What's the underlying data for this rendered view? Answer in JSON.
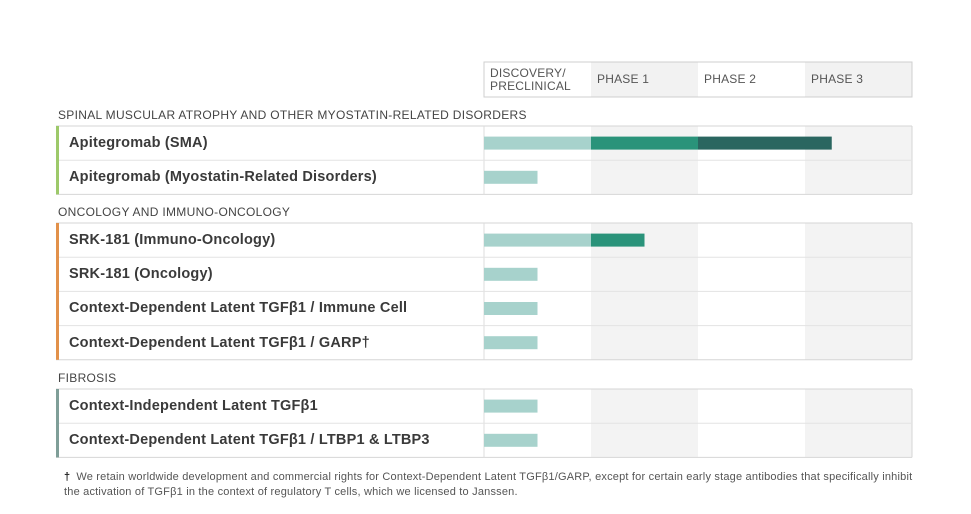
{
  "chart_data": {
    "type": "bar",
    "stages": [
      "DISCOVERY/ PRECLINICAL",
      "PHASE 1",
      "PHASE 2",
      "PHASE 3"
    ],
    "stage_header_lines": [
      [
        "DISCOVERY/",
        "PRECLINICAL"
      ],
      [
        "PHASE 1"
      ],
      [
        "PHASE 2"
      ],
      [
        "PHASE 3"
      ]
    ],
    "xlim": [
      0,
      4
    ],
    "value_unit": "development stage (1 = end of Discovery/Preclinical, 2 = end of Phase 1, 3 = end of Phase 2, 4 = end of Phase 3)",
    "groups": [
      {
        "name": "SPINAL MUSCULAR ATROPHY AND OTHER MYOSTATIN-RELATED DISORDERS",
        "accent_color": "#9dc96a",
        "programs": [
          {
            "name": "Apitegromab (SMA)",
            "progress": 3.25
          },
          {
            "name": "Apitegromab (Myostatin-Related Disorders)",
            "progress": 0.5
          }
        ]
      },
      {
        "name": "ONCOLOGY AND IMMUNO-ONCOLOGY",
        "accent_color": "#e2914a",
        "programs": [
          {
            "name": "SRK-181 (Immuno-Oncology)",
            "progress": 1.5
          },
          {
            "name": "SRK-181 (Oncology)",
            "progress": 0.5
          },
          {
            "name": "Context-Dependent Latent TGFβ1 / Immune Cell",
            "progress": 0.5
          },
          {
            "name": "Context-Dependent Latent TGFβ1 / GARP†",
            "progress": 0.5
          }
        ]
      },
      {
        "name": "FIBROSIS",
        "accent_color": "#7f9e98",
        "programs": [
          {
            "name": "Context-Independent Latent TGFβ1",
            "progress": 0.5
          },
          {
            "name": "Context-Dependent Latent TGFβ1 / LTBP1 & LTBP3",
            "progress": 0.5
          }
        ]
      }
    ],
    "stage_colors": [
      "#a7d2cc",
      "#2a937a",
      "#2a6660",
      "#2a6660"
    ]
  },
  "footnote": {
    "symbol": "†",
    "text": "We retain worldwide development and commercial rights for Context-Dependent Latent TGFβ1/GARP, except for certain early stage antibodies that specifically inhibit the activation of TGFβ1 in the context of regulatory T cells, which we licensed to Janssen."
  }
}
